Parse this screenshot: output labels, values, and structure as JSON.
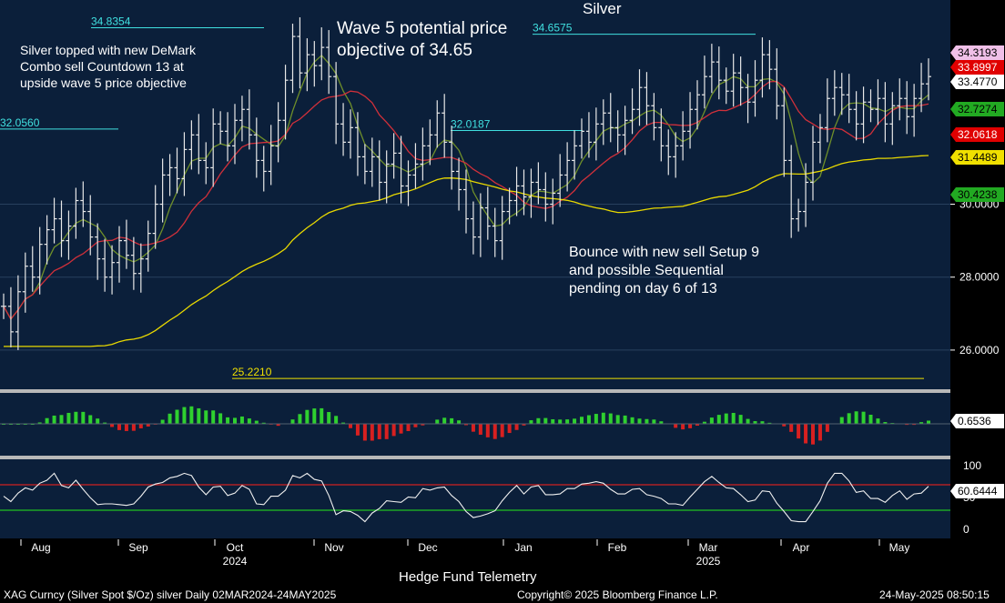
{
  "chart_data": {
    "type": "candlestick",
    "title": "Silver",
    "instrument_line": "XAG Curncy (Silver Spot  $/Oz) silver  Daily 02MAR2024-24MAY2025",
    "copyright": "Copyright© 2025 Bloomberg Finance L.P.",
    "timestamp": "24-May-2025 08:50:15",
    "footer_center": "Hedge Fund Telemetry",
    "x_months": [
      "Aug",
      "Sep",
      "Oct",
      "Nov",
      "Dec",
      "Jan",
      "Feb",
      "Mar",
      "Apr",
      "May"
    ],
    "x_years": [
      {
        "label": "2024",
        "after": "Oct"
      },
      {
        "label": "2025",
        "after": "Mar"
      }
    ],
    "price_axis": {
      "ylim": [
        25.0,
        35.5
      ],
      "ticks": [
        "26.0000",
        "28.0000",
        "30.0000"
      ]
    },
    "price_badges": [
      {
        "label": "34.3193",
        "color": "#f0c0e8",
        "text": "#000"
      },
      {
        "label": "33.8997",
        "color": "#e00000",
        "text": "#fff"
      },
      {
        "label": "33.4770",
        "color": "#ffffff",
        "text": "#000"
      },
      {
        "label": "32.7274",
        "color": "#22aa22",
        "text": "#000"
      },
      {
        "label": "32.0618",
        "color": "#e00000",
        "text": "#fff"
      },
      {
        "label": "31.4489",
        "color": "#f0e000",
        "text": "#000"
      },
      {
        "label": "30.4238",
        "color": "#22aa22",
        "text": "#000"
      }
    ],
    "level_labels": [
      {
        "label": "34.8354",
        "value": 34.84,
        "color": "#40e0e0"
      },
      {
        "label": "34.6575",
        "value": 34.66,
        "color": "#40e0e0"
      },
      {
        "label": "32.0560",
        "value": 32.06,
        "color": "#40e0e0"
      },
      {
        "label": "32.0187",
        "value": 32.02,
        "color": "#40e0e0"
      },
      {
        "label": "25.2210",
        "value": 25.22,
        "color": "#f0e000"
      }
    ],
    "annotations": {
      "left": "Silver topped with new DeMark Combo sell Countdown 13 at upside wave 5 price objective",
      "top": "Wave 5 potential price objective of 34.65",
      "bounce": "Bounce with new sell Setup 9 and possible Sequential pending on day 6 of 13"
    },
    "series_close": [
      27.2,
      26.5,
      27.6,
      28.3,
      28.0,
      28.9,
      29.3,
      29.6,
      29.0,
      29.4,
      30.1,
      29.8,
      29.1,
      28.5,
      28.0,
      28.4,
      29.0,
      28.6,
      28.1,
      28.5,
      29.2,
      30.0,
      30.8,
      31.0,
      30.7,
      31.5,
      31.9,
      31.2,
      31.0,
      32.2,
      32.0,
      31.6,
      32.3,
      32.6,
      31.9,
      31.2,
      30.9,
      31.6,
      32.3,
      33.4,
      34.6,
      33.6,
      34.1,
      33.8,
      34.3,
      33.5,
      32.2,
      31.7,
      32.1,
      31.3,
      30.9,
      31.3,
      30.6,
      31.1,
      31.4,
      30.5,
      30.8,
      31.1,
      31.6,
      31.9,
      32.5,
      31.7,
      30.9,
      30.4,
      29.6,
      29.1,
      29.9,
      29.4,
      29.0,
      29.8,
      30.1,
      30.5,
      30.2,
      30.6,
      30.4,
      30.0,
      30.3,
      30.8,
      31.2,
      31.6,
      32.0,
      31.7,
      32.2,
      32.5,
      32.1,
      31.9,
      32.3,
      32.6,
      33.2,
      32.7,
      32.1,
      31.6,
      31.3,
      31.6,
      32.0,
      32.6,
      33.0,
      33.5,
      33.9,
      33.4,
      33.1,
      33.6,
      33.2,
      32.8,
      33.4,
      34.1,
      33.7,
      32.7,
      31.2,
      29.6,
      29.8,
      30.6,
      31.7,
      32.1,
      32.9,
      33.2,
      33.0,
      32.6,
      32.2,
      32.8,
      32.6,
      32.9,
      32.2,
      32.7,
      32.9,
      32.4,
      32.9,
      33.3,
      33.5
    ],
    "indicator_1": {
      "label": "0.6536"
    },
    "indicator_2": {
      "label": "60.6444",
      "ylim": [
        0,
        100
      ],
      "ticks": [
        "0",
        "50",
        "100"
      ]
    }
  }
}
